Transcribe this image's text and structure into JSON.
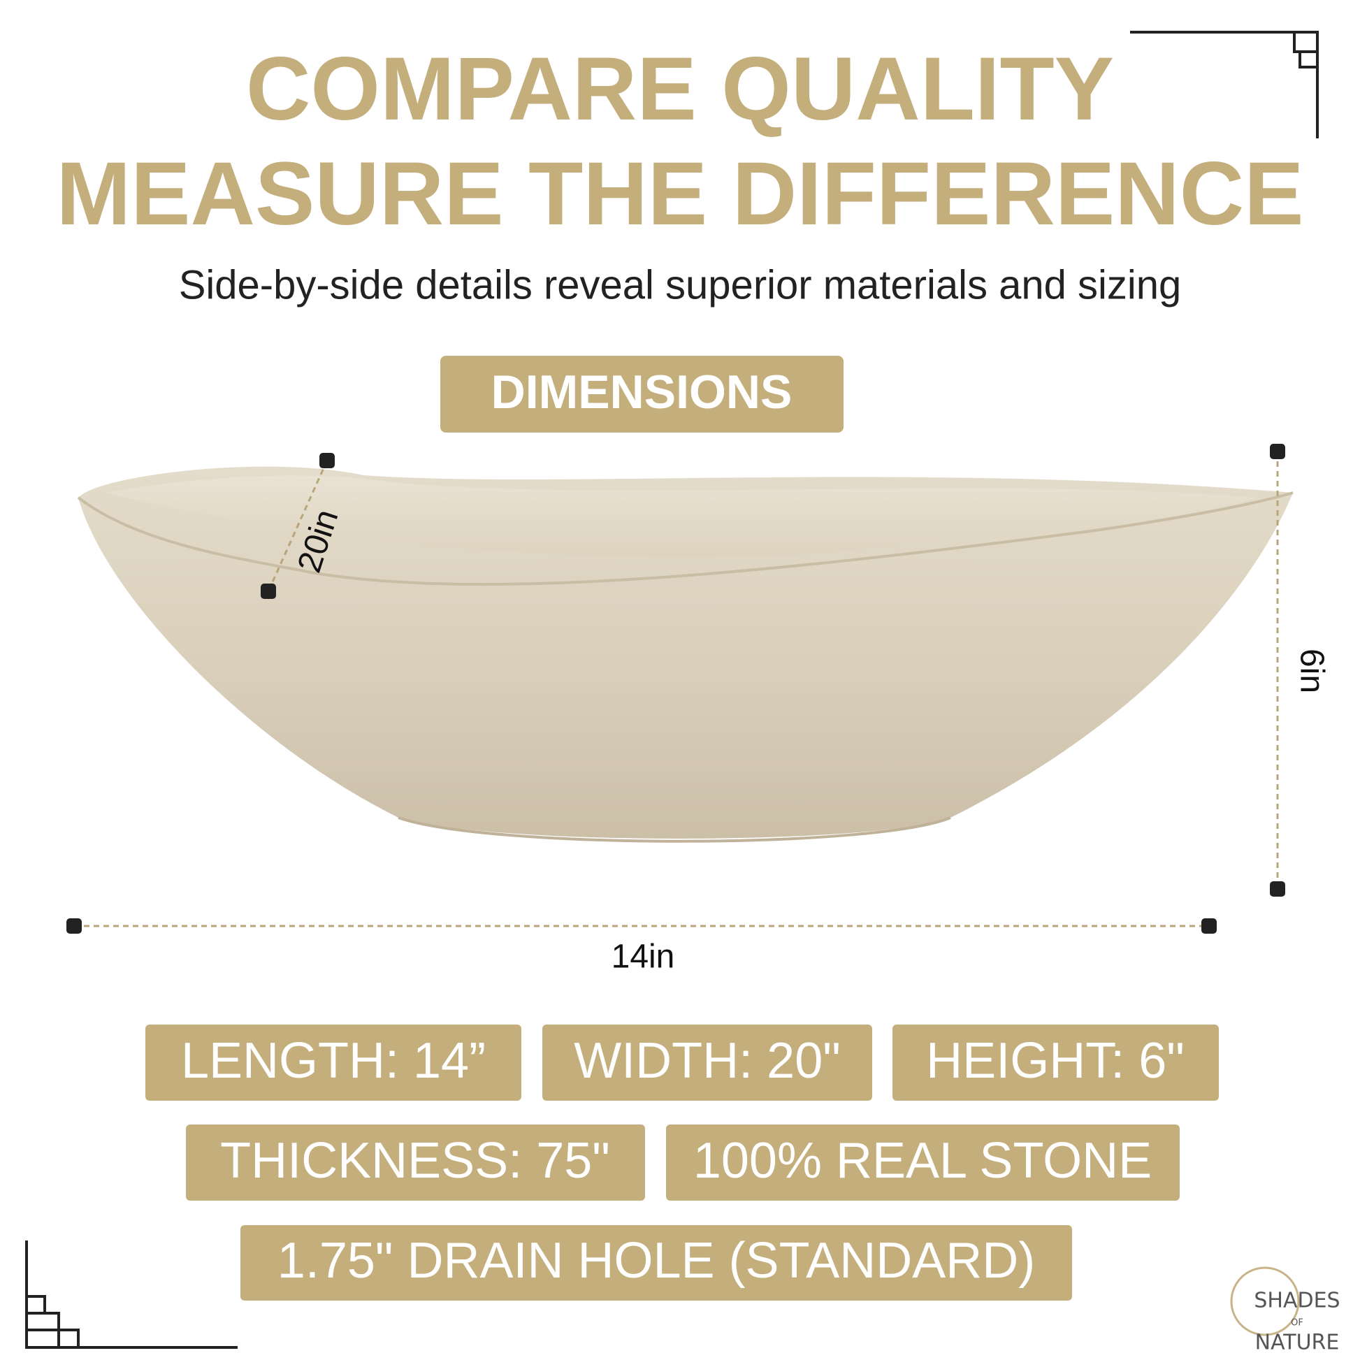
{
  "header": {
    "title_line1": "COMPARE QUALITY",
    "title_line2": "MEASURE THE DIFFERENCE",
    "subtitle": "Side-by-side details reveal superior materials and sizing"
  },
  "badge": "DIMENSIONS",
  "dimensions": {
    "width_label": "20in",
    "height_label": "6in",
    "length_label": "14in"
  },
  "specs": [
    "LENGTH: 14”",
    "WIDTH: 20\"",
    "HEIGHT: 6\"",
    "THICKNESS: 75\"",
    "100% REAL STONE",
    "1.75\" DRAIN HOLE (STANDARD)"
  ],
  "logo": {
    "line1": "SHADES",
    "line2": "OF",
    "line3": "NATURE"
  }
}
